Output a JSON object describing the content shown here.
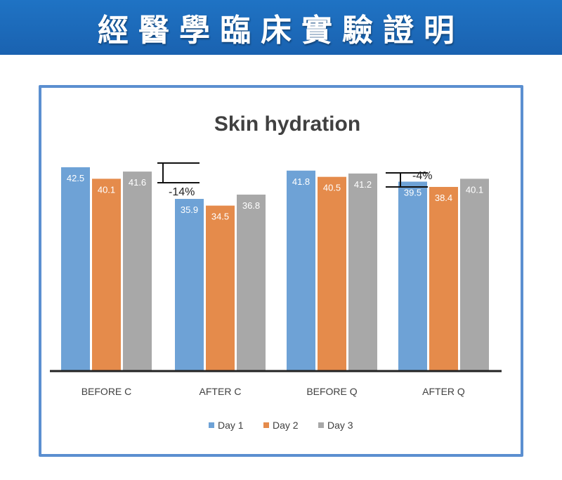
{
  "banner": {
    "title": "經醫學臨床實驗證明"
  },
  "chart_data": {
    "type": "bar",
    "title": "Skin hydration",
    "categories": [
      "BEFORE C",
      "AFTER C",
      "BEFORE Q",
      "AFTER Q"
    ],
    "series": [
      {
        "name": "Day 1",
        "values": [
          42.5,
          35.9,
          41.8,
          39.5
        ],
        "color": "#6ea2d6"
      },
      {
        "name": "Day 2",
        "values": [
          40.1,
          34.5,
          40.5,
          38.4
        ],
        "color": "#e58b4b"
      },
      {
        "name": "Day 3",
        "values": [
          41.6,
          36.8,
          41.2,
          40.1
        ],
        "color": "#a8a8a8"
      }
    ],
    "ylim": [
      0,
      50
    ],
    "legend": "bottom",
    "grid": false,
    "annotations": [
      {
        "text": "-14%",
        "from_category": "BEFORE C",
        "to_category": "AFTER C"
      },
      {
        "text": "-4%",
        "from_category": "BEFORE Q",
        "to_category": "AFTER Q"
      }
    ]
  }
}
